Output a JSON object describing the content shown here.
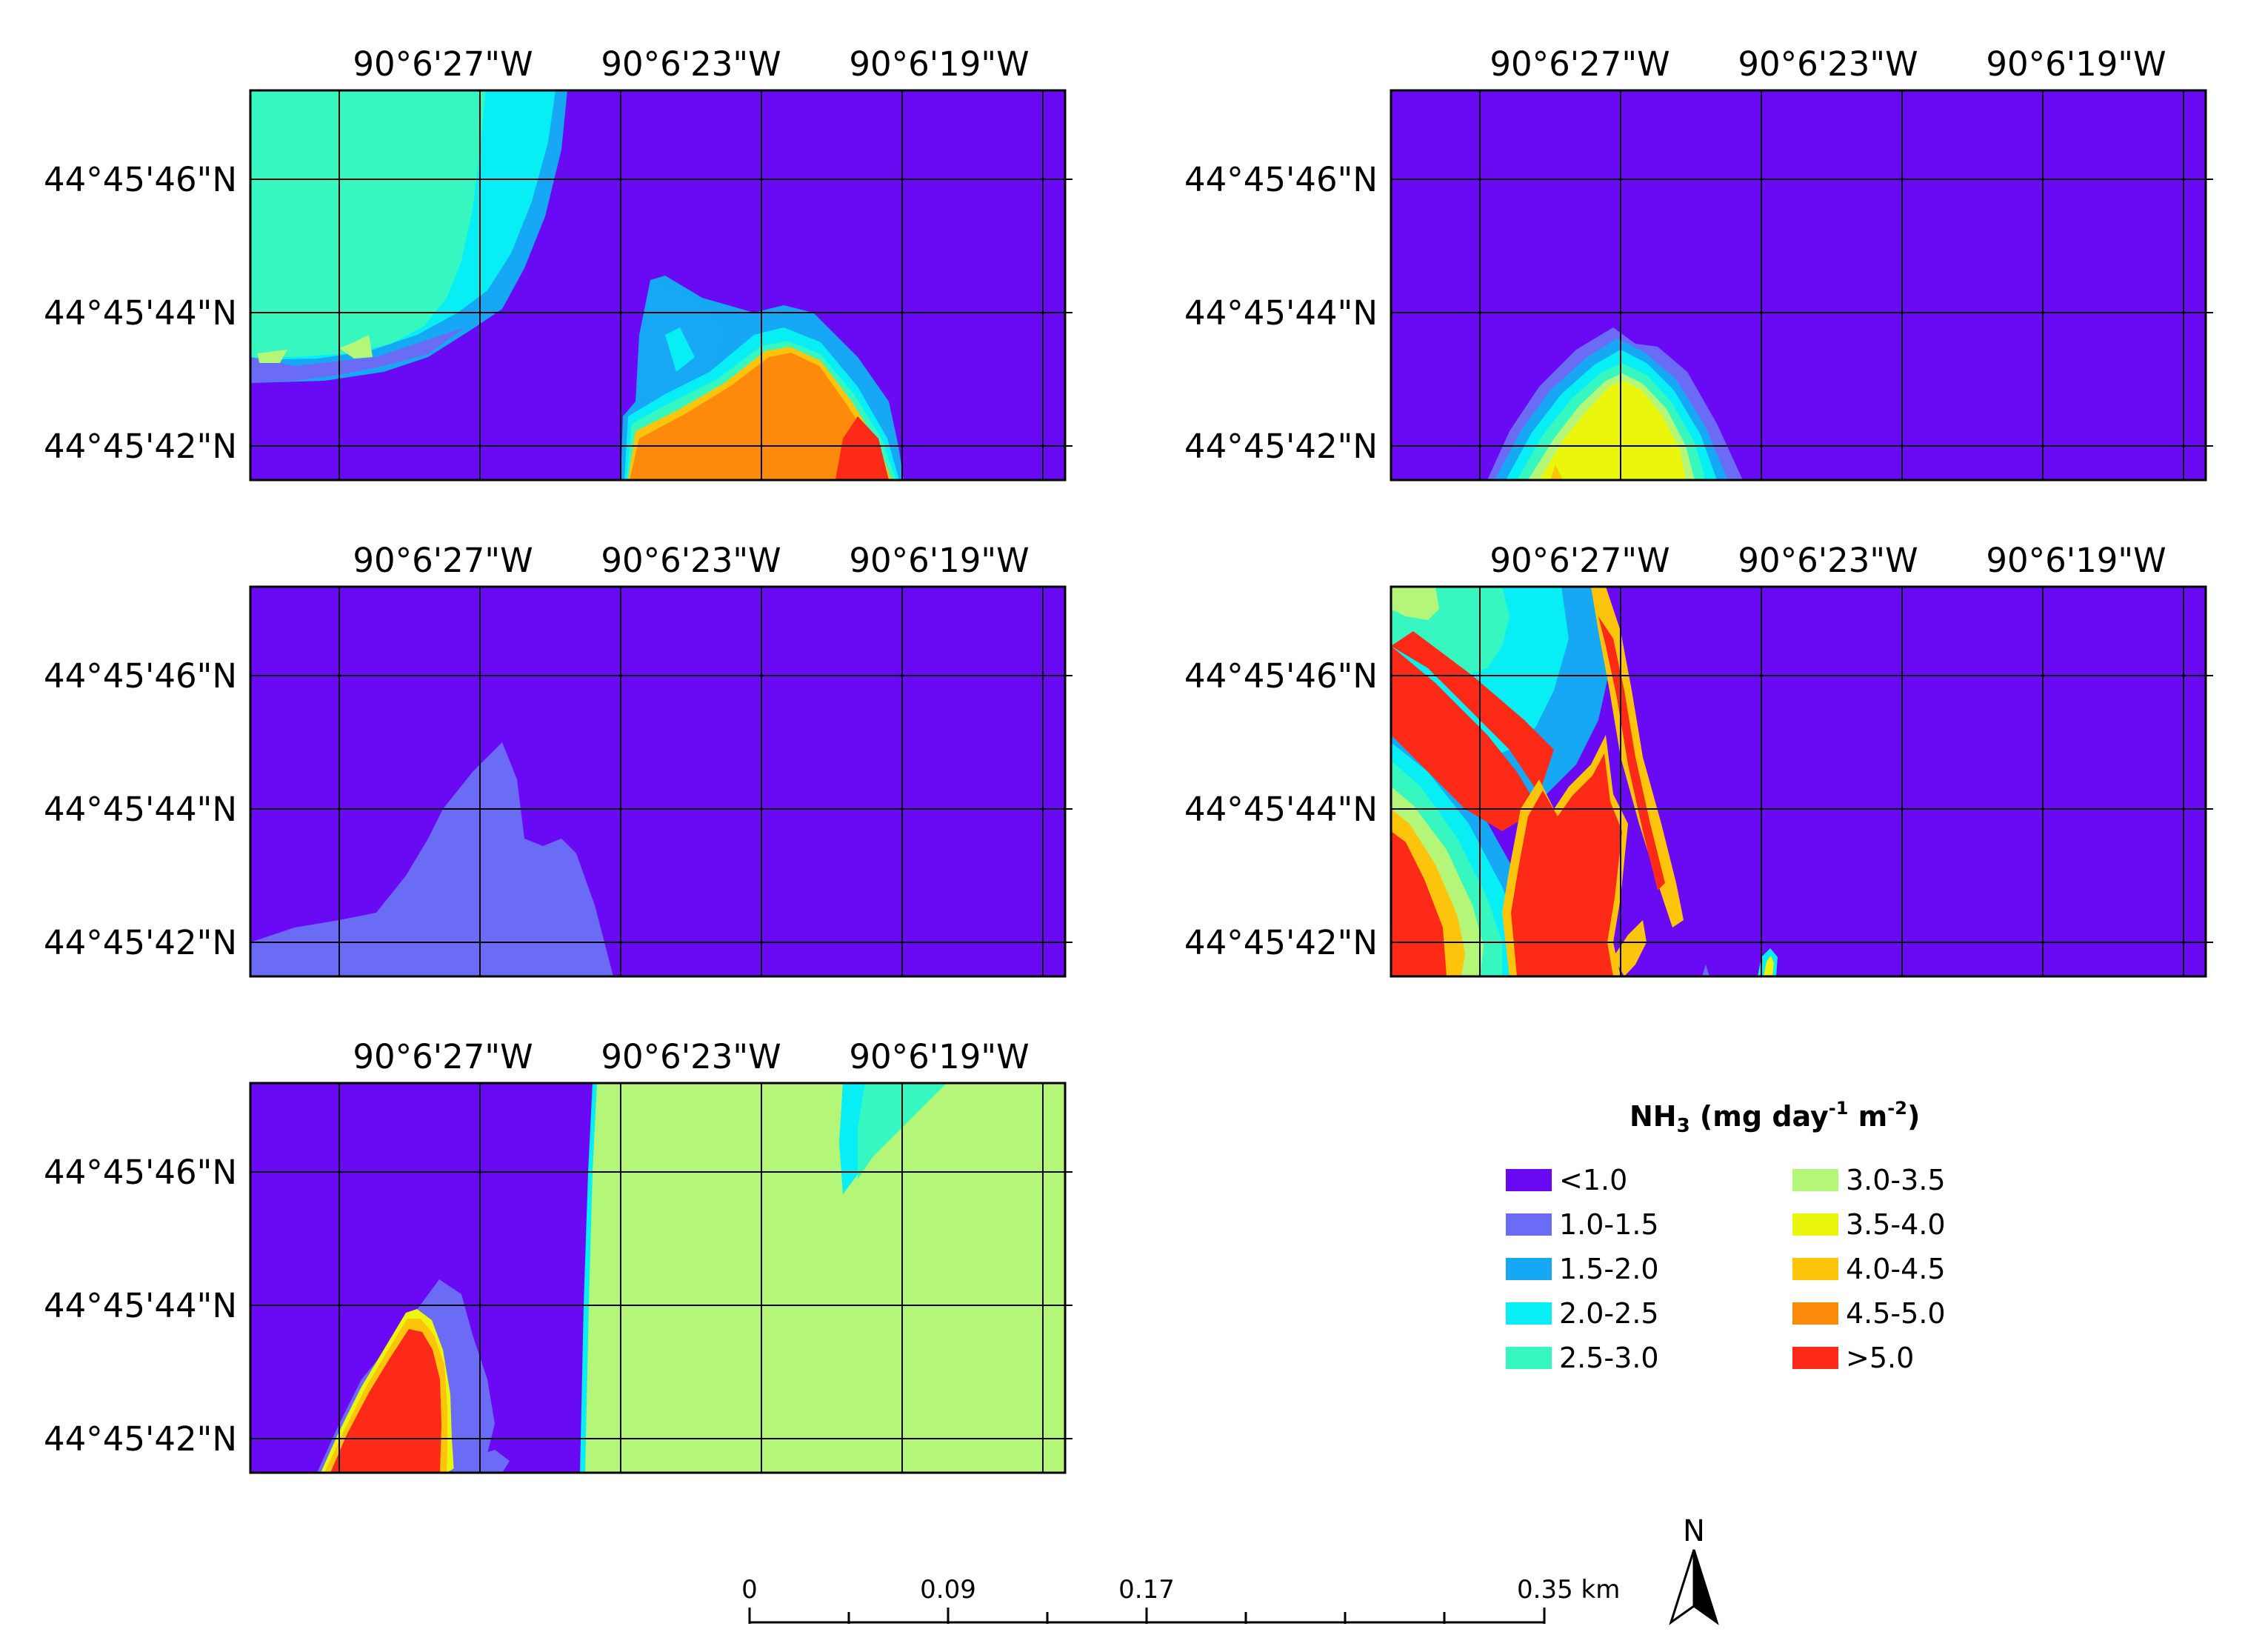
{
  "colors": {
    "c0": "#6a0af5",
    "c1": "#6b6cf5",
    "c2": "#17a8f5",
    "c3": "#08eef5",
    "c4": "#37f7c1",
    "c5": "#b4f778",
    "c6": "#eaf70c",
    "c7": "#fdc40c",
    "c8": "#fd8a0b",
    "c9": "#fc2a16"
  },
  "longitude_labels": [
    "90°6'27\"W",
    "90°6'23\"W",
    "90°6'19\"W"
  ],
  "latitude_labels": [
    "44°45'46\"N",
    "44°45'44\"N",
    "44°45'42\"N"
  ],
  "legend": {
    "title_main": "NH",
    "title_sub": "3",
    "title_unit_a": " (mg day",
    "title_exp_a": "-1",
    "title_unit_b": " m",
    "title_exp_b": "-2",
    "title_close": ")",
    "items": [
      {
        "label": "<1.0",
        "color": "#6a0af5"
      },
      {
        "label": "1.0-1.5",
        "color": "#6b6cf5"
      },
      {
        "label": "1.5-2.0",
        "color": "#17a8f5"
      },
      {
        "label": "2.0-2.5",
        "color": "#08eef5"
      },
      {
        "label": "2.5-3.0",
        "color": "#37f7c1"
      },
      {
        "label": "3.0-3.5",
        "color": "#b4f778"
      },
      {
        "label": "3.5-4.0",
        "color": "#eaf70c"
      },
      {
        "label": "4.0-4.5",
        "color": "#fdc40c"
      },
      {
        "label": "4.5-5.0",
        "color": "#fd8a0b"
      },
      {
        "label": ">5.0",
        "color": "#fc2a16"
      }
    ]
  },
  "scale_bar": {
    "labels": [
      "0",
      "0.09",
      "0.17",
      "0.35 km"
    ]
  },
  "north_arrow": {
    "label": "N"
  }
}
